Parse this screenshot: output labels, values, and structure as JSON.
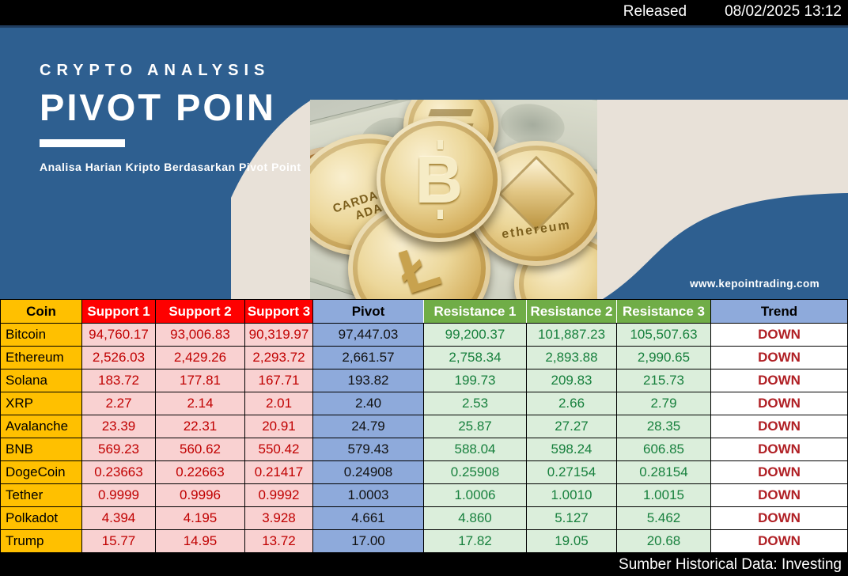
{
  "top_bar": {
    "released_label": "Released",
    "timestamp": "08/02/2025 13:12"
  },
  "banner": {
    "kicker": "CRYPTO ANALYSIS",
    "title": "PIVOT POIN",
    "subtitle": "Analisa Harian Kripto Berdasarkan Pivot Point",
    "website": "www.kepointrading.com",
    "photo": {
      "cardano_label_line1": "CARDANO",
      "cardano_label_line2": "ADA",
      "ethereum_label": "ethereum",
      "coin_icons": [
        "cardano-coin",
        "bitcoin-coin",
        "ethereum-coin",
        "litecoin-coin",
        "solana-coin"
      ]
    },
    "colors": {
      "blue": "#2e5f90",
      "beige": "#e8e1d8",
      "top_edge": "#1f3c5e"
    }
  },
  "table": {
    "columns": [
      "Coin",
      "Support 1",
      "Support 2",
      "Support 3",
      "Pivot",
      "Resistance 1",
      "Resistance 2",
      "Resistance 3",
      "Trend"
    ],
    "rows": [
      {
        "coin": "Bitcoin",
        "s1": "94,760.17",
        "s2": "93,006.83",
        "s3": "90,319.97",
        "pivot": "97,447.03",
        "r1": "99,200.37",
        "r2": "101,887.23",
        "r3": "105,507.63",
        "trend": "DOWN"
      },
      {
        "coin": "Ethereum",
        "s1": "2,526.03",
        "s2": "2,429.26",
        "s3": "2,293.72",
        "pivot": "2,661.57",
        "r1": "2,758.34",
        "r2": "2,893.88",
        "r3": "2,990.65",
        "trend": "DOWN"
      },
      {
        "coin": "Solana",
        "s1": "183.72",
        "s2": "177.81",
        "s3": "167.71",
        "pivot": "193.82",
        "r1": "199.73",
        "r2": "209.83",
        "r3": "215.73",
        "trend": "DOWN"
      },
      {
        "coin": "XRP",
        "s1": "2.27",
        "s2": "2.14",
        "s3": "2.01",
        "pivot": "2.40",
        "r1": "2.53",
        "r2": "2.66",
        "r3": "2.79",
        "trend": "DOWN"
      },
      {
        "coin": "Avalanche",
        "s1": "23.39",
        "s2": "22.31",
        "s3": "20.91",
        "pivot": "24.79",
        "r1": "25.87",
        "r2": "27.27",
        "r3": "28.35",
        "trend": "DOWN"
      },
      {
        "coin": "BNB",
        "s1": "569.23",
        "s2": "560.62",
        "s3": "550.42",
        "pivot": "579.43",
        "r1": "588.04",
        "r2": "598.24",
        "r3": "606.85",
        "trend": "DOWN"
      },
      {
        "coin": "DogeCoin",
        "s1": "0.23663",
        "s2": "0.22663",
        "s3": "0.21417",
        "pivot": "0.24908",
        "r1": "0.25908",
        "r2": "0.27154",
        "r3": "0.28154",
        "trend": "DOWN"
      },
      {
        "coin": "Tether",
        "s1": "0.9999",
        "s2": "0.9996",
        "s3": "0.9992",
        "pivot": "1.0003",
        "r1": "1.0006",
        "r2": "1.0010",
        "r3": "1.0015",
        "trend": "DOWN"
      },
      {
        "coin": "Polkadot",
        "s1": "4.394",
        "s2": "4.195",
        "s3": "3.928",
        "pivot": "4.661",
        "r1": "4.860",
        "r2": "5.127",
        "r3": "5.462",
        "trend": "DOWN"
      },
      {
        "coin": "Trump",
        "s1": "15.77",
        "s2": "14.95",
        "s3": "13.72",
        "pivot": "17.00",
        "r1": "17.82",
        "r2": "19.05",
        "r3": "20.68",
        "trend": "DOWN"
      }
    ],
    "colors": {
      "coin_header": "#ffc000",
      "support_header": "#fe0000",
      "pivot_header": "#8eaadb",
      "resistance_header": "#70ad47",
      "support_cell": "#f9d1d1",
      "resistance_cell": "#dbeedb",
      "support_text": "#c00000",
      "resistance_text": "#17803d",
      "trend_text": "#b01f24"
    }
  },
  "bottom_bar": {
    "source_label": "Sumber Historical Data: Investing"
  }
}
